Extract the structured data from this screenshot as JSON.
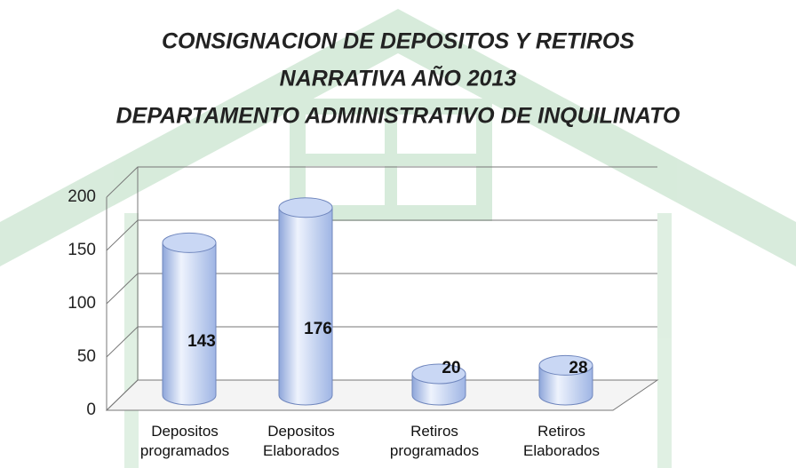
{
  "chart_data": {
    "type": "bar3d",
    "title": [
      "CONSIGNACION DE DEPOSITOS Y RETIROS",
      "NARRATIVA AÑO 2013",
      "DEPARTAMENTO ADMINISTRATIVO DE INQUILINATO"
    ],
    "categories": [
      "Depositos programados",
      "Depositos Elaborados",
      "Retiros programados",
      "Retiros Elaborados"
    ],
    "values": [
      143,
      176,
      20,
      28
    ],
    "color": "#b8c9ee",
    "ylim": [
      0,
      200
    ],
    "yticks": [
      0,
      50,
      100,
      150,
      200
    ],
    "grid": true
  }
}
